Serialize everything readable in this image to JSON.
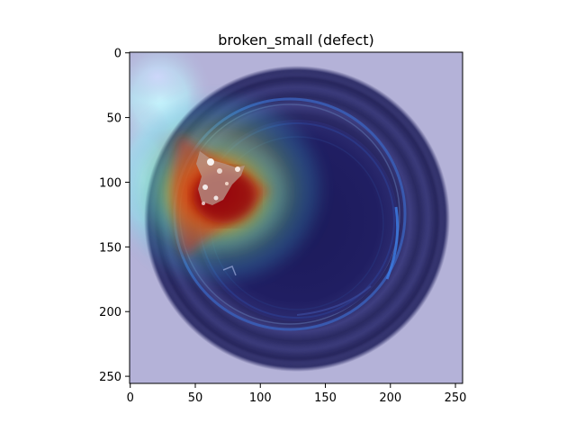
{
  "figure": {
    "title": "broken_small (defect)",
    "x_axis": {
      "ticks": [
        {
          "value": 0,
          "label": "0"
        },
        {
          "value": 50,
          "label": "50"
        },
        {
          "value": 100,
          "label": "100"
        },
        {
          "value": 150,
          "label": "150"
        },
        {
          "value": 200,
          "label": "200"
        },
        {
          "value": 250,
          "label": "250"
        }
      ]
    },
    "y_axis": {
      "ticks": [
        {
          "value": 0,
          "label": "0"
        },
        {
          "value": 50,
          "label": "50"
        },
        {
          "value": 100,
          "label": "100"
        },
        {
          "value": 150,
          "label": "150"
        },
        {
          "value": 200,
          "label": "200"
        },
        {
          "value": 250,
          "label": "250"
        }
      ]
    },
    "image_extent": [
      0,
      256
    ],
    "colormap": "jet",
    "heatmap_peak_region": "left side of bottle rim near x≈65, y≈110"
  }
}
